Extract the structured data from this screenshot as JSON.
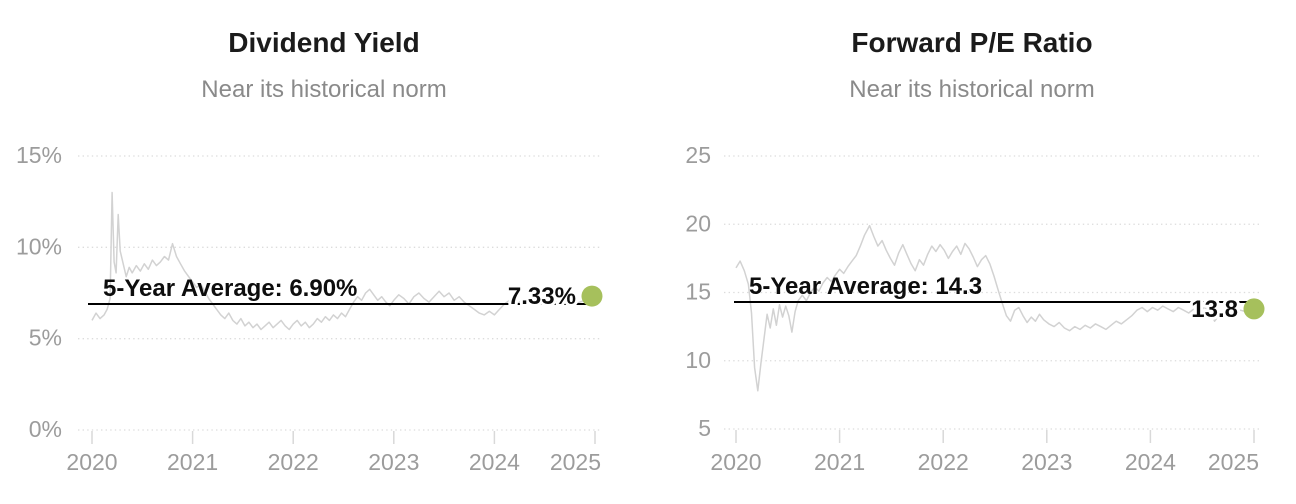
{
  "colors": {
    "series_line": "#d2d2d2",
    "average_line": "#000000",
    "marker": "#a6c05c",
    "grid": "#dcdcdc",
    "tick": "#d9d9d9",
    "axis_text": "#9c9c9c",
    "title_text": "#1b1b1b",
    "subtitle_text": "#8a8a8a"
  },
  "chart_data": [
    {
      "type": "line",
      "title": "Dividend Yield",
      "subtitle": "Near its historical norm",
      "xlabel": "",
      "ylabel": "",
      "ylim": [
        0,
        15
      ],
      "xlim": [
        2019.95,
        2025.1
      ],
      "grid": "horizontal-dotted",
      "legend": "none",
      "yticks": [
        {
          "value": 0,
          "label": "0%"
        },
        {
          "value": 5,
          "label": "5%"
        },
        {
          "value": 10,
          "label": "10%"
        },
        {
          "value": 15,
          "label": "15%"
        }
      ],
      "xticks": [
        {
          "value": 2020,
          "label": "2020"
        },
        {
          "value": 2021,
          "label": "2021"
        },
        {
          "value": 2022,
          "label": "2022"
        },
        {
          "value": 2023,
          "label": "2023"
        },
        {
          "value": 2024,
          "label": "2024"
        },
        {
          "value": 2025,
          "label": "2025"
        }
      ],
      "average_line": {
        "value": 6.9,
        "label": "5-Year Average: 6.90%"
      },
      "latest": {
        "x": 2024.97,
        "value": 7.33,
        "label": "7.33%"
      },
      "series": [
        {
          "name": "Dividend Yield",
          "x": [
            2020.0,
            2020.04,
            2020.08,
            2020.12,
            2020.15,
            2020.18,
            2020.2,
            2020.22,
            2020.24,
            2020.26,
            2020.28,
            2020.31,
            2020.34,
            2020.37,
            2020.4,
            2020.44,
            2020.48,
            2020.52,
            2020.56,
            2020.6,
            2020.64,
            2020.68,
            2020.72,
            2020.76,
            2020.8,
            2020.84,
            2020.88,
            2020.92,
            2020.96,
            2021.0,
            2021.04,
            2021.08,
            2021.12,
            2021.16,
            2021.2,
            2021.24,
            2021.28,
            2021.32,
            2021.36,
            2021.4,
            2021.44,
            2021.48,
            2021.52,
            2021.56,
            2021.6,
            2021.64,
            2021.68,
            2021.72,
            2021.76,
            2021.8,
            2021.84,
            2021.88,
            2021.92,
            2021.96,
            2022.0,
            2022.04,
            2022.08,
            2022.12,
            2022.16,
            2022.2,
            2022.24,
            2022.28,
            2022.32,
            2022.36,
            2022.4,
            2022.44,
            2022.48,
            2022.52,
            2022.56,
            2022.6,
            2022.64,
            2022.68,
            2022.72,
            2022.76,
            2022.8,
            2022.84,
            2022.88,
            2022.92,
            2022.96,
            2023.0,
            2023.05,
            2023.1,
            2023.15,
            2023.2,
            2023.25,
            2023.3,
            2023.35,
            2023.4,
            2023.45,
            2023.5,
            2023.55,
            2023.6,
            2023.65,
            2023.7,
            2023.75,
            2023.8,
            2023.85,
            2023.9,
            2023.95,
            2024.0,
            2024.05,
            2024.1,
            2024.15,
            2024.2,
            2024.25,
            2024.3,
            2024.35,
            2024.4,
            2024.45,
            2024.5,
            2024.55,
            2024.6,
            2024.65,
            2024.7,
            2024.75,
            2024.8,
            2024.85,
            2024.9,
            2024.95,
            2024.97
          ],
          "y": [
            6.0,
            6.4,
            6.1,
            6.3,
            6.6,
            7.2,
            13.0,
            9.2,
            8.6,
            11.8,
            9.8,
            9.1,
            8.4,
            8.9,
            8.6,
            9.0,
            8.7,
            9.1,
            8.8,
            9.3,
            9.0,
            9.2,
            9.5,
            9.3,
            10.2,
            9.5,
            9.1,
            8.7,
            8.4,
            8.1,
            7.8,
            8.0,
            7.6,
            7.2,
            6.9,
            6.6,
            6.3,
            6.1,
            6.4,
            6.0,
            5.8,
            6.1,
            5.7,
            5.9,
            5.6,
            5.8,
            5.5,
            5.7,
            5.9,
            5.6,
            5.8,
            6.0,
            5.7,
            5.5,
            5.8,
            6.0,
            5.7,
            5.9,
            5.6,
            5.8,
            6.1,
            5.9,
            6.2,
            6.0,
            6.3,
            6.1,
            6.4,
            6.2,
            6.6,
            7.0,
            7.3,
            7.1,
            7.5,
            7.7,
            7.4,
            7.1,
            7.3,
            7.0,
            6.8,
            7.1,
            7.4,
            7.2,
            6.9,
            7.3,
            7.5,
            7.2,
            7.0,
            7.3,
            7.6,
            7.3,
            7.5,
            7.1,
            7.3,
            7.0,
            6.8,
            6.6,
            6.4,
            6.3,
            6.5,
            6.3,
            6.6,
            6.9,
            7.1,
            6.8,
            7.0,
            7.2,
            6.9,
            7.1,
            7.0,
            7.2,
            6.9,
            7.1,
            6.8,
            7.0,
            7.1,
            6.9,
            7.0,
            7.1,
            7.25,
            7.33
          ]
        }
      ]
    },
    {
      "type": "line",
      "title": "Forward P/E Ratio",
      "subtitle": "Near its historical norm",
      "xlabel": "",
      "ylabel": "",
      "ylim": [
        5,
        25
      ],
      "xlim": [
        2019.95,
        2025.05
      ],
      "grid": "horizontal-dotted",
      "legend": "none",
      "yticks": [
        {
          "value": 5,
          "label": "5"
        },
        {
          "value": 10,
          "label": "10"
        },
        {
          "value": 15,
          "label": "15"
        },
        {
          "value": 20,
          "label": "20"
        },
        {
          "value": 25,
          "label": "25"
        }
      ],
      "xticks": [
        {
          "value": 2020,
          "label": "2020"
        },
        {
          "value": 2021,
          "label": "2021"
        },
        {
          "value": 2022,
          "label": "2022"
        },
        {
          "value": 2023,
          "label": "2023"
        },
        {
          "value": 2024,
          "label": "2024"
        },
        {
          "value": 2025,
          "label": "2025"
        }
      ],
      "average_line": {
        "value": 14.3,
        "label": "5-Year Average: 14.3"
      },
      "latest": {
        "x": 2025.0,
        "value": 13.8,
        "label": "13.8"
      },
      "series": [
        {
          "name": "Forward P/E Ratio",
          "x": [
            2020.0,
            2020.04,
            2020.08,
            2020.12,
            2020.15,
            2020.18,
            2020.21,
            2020.24,
            2020.27,
            2020.3,
            2020.33,
            2020.36,
            2020.39,
            2020.42,
            2020.45,
            2020.48,
            2020.51,
            2020.54,
            2020.57,
            2020.6,
            2020.64,
            2020.68,
            2020.72,
            2020.76,
            2020.8,
            2020.84,
            2020.88,
            2020.92,
            2020.96,
            2021.0,
            2021.04,
            2021.08,
            2021.12,
            2021.16,
            2021.2,
            2021.24,
            2021.29,
            2021.33,
            2021.37,
            2021.41,
            2021.45,
            2021.49,
            2021.53,
            2021.57,
            2021.61,
            2021.65,
            2021.69,
            2021.73,
            2021.77,
            2021.81,
            2021.85,
            2021.89,
            2021.93,
            2021.97,
            2022.01,
            2022.05,
            2022.09,
            2022.13,
            2022.17,
            2022.21,
            2022.25,
            2022.29,
            2022.33,
            2022.37,
            2022.41,
            2022.45,
            2022.49,
            2022.53,
            2022.57,
            2022.61,
            2022.65,
            2022.69,
            2022.73,
            2022.77,
            2022.81,
            2022.85,
            2022.89,
            2022.93,
            2022.97,
            2023.02,
            2023.07,
            2023.12,
            2023.17,
            2023.22,
            2023.27,
            2023.32,
            2023.37,
            2023.42,
            2023.47,
            2023.52,
            2023.57,
            2023.62,
            2023.67,
            2023.72,
            2023.77,
            2023.82,
            2023.87,
            2023.92,
            2023.97,
            2024.02,
            2024.07,
            2024.12,
            2024.17,
            2024.22,
            2024.27,
            2024.32,
            2024.37,
            2024.42,
            2024.47,
            2024.52,
            2024.57,
            2024.62,
            2024.67,
            2024.72,
            2024.77,
            2024.82,
            2024.87,
            2024.92,
            2024.97,
            2025.0
          ],
          "y": [
            16.8,
            17.3,
            16.6,
            15.6,
            13.5,
            9.5,
            7.8,
            9.8,
            11.6,
            13.4,
            12.4,
            13.8,
            12.6,
            14.1,
            13.2,
            14.0,
            13.3,
            12.1,
            13.6,
            14.4,
            14.8,
            14.4,
            15.0,
            15.4,
            15.1,
            15.7,
            16.1,
            15.8,
            16.3,
            16.7,
            16.4,
            16.9,
            17.3,
            17.7,
            18.4,
            19.2,
            19.9,
            19.1,
            18.4,
            18.8,
            18.1,
            17.5,
            17.0,
            17.9,
            18.5,
            17.8,
            17.1,
            16.6,
            17.4,
            17.0,
            17.8,
            18.4,
            18.0,
            18.5,
            18.1,
            17.5,
            18.0,
            18.4,
            17.8,
            18.6,
            18.2,
            17.6,
            16.9,
            17.4,
            17.7,
            17.1,
            16.2,
            15.2,
            14.2,
            13.3,
            12.9,
            13.7,
            13.9,
            13.3,
            12.8,
            13.2,
            12.9,
            13.4,
            13.0,
            12.7,
            12.5,
            12.8,
            12.4,
            12.2,
            12.5,
            12.3,
            12.6,
            12.4,
            12.7,
            12.5,
            12.3,
            12.6,
            12.9,
            12.7,
            13.0,
            13.3,
            13.7,
            13.9,
            13.6,
            13.9,
            13.7,
            14.0,
            13.8,
            13.6,
            13.9,
            13.7,
            13.5,
            13.8,
            13.6,
            13.9,
            13.7,
            12.9,
            13.4,
            13.6,
            13.3,
            13.5,
            13.7,
            13.6,
            13.7,
            13.8
          ]
        }
      ]
    }
  ]
}
